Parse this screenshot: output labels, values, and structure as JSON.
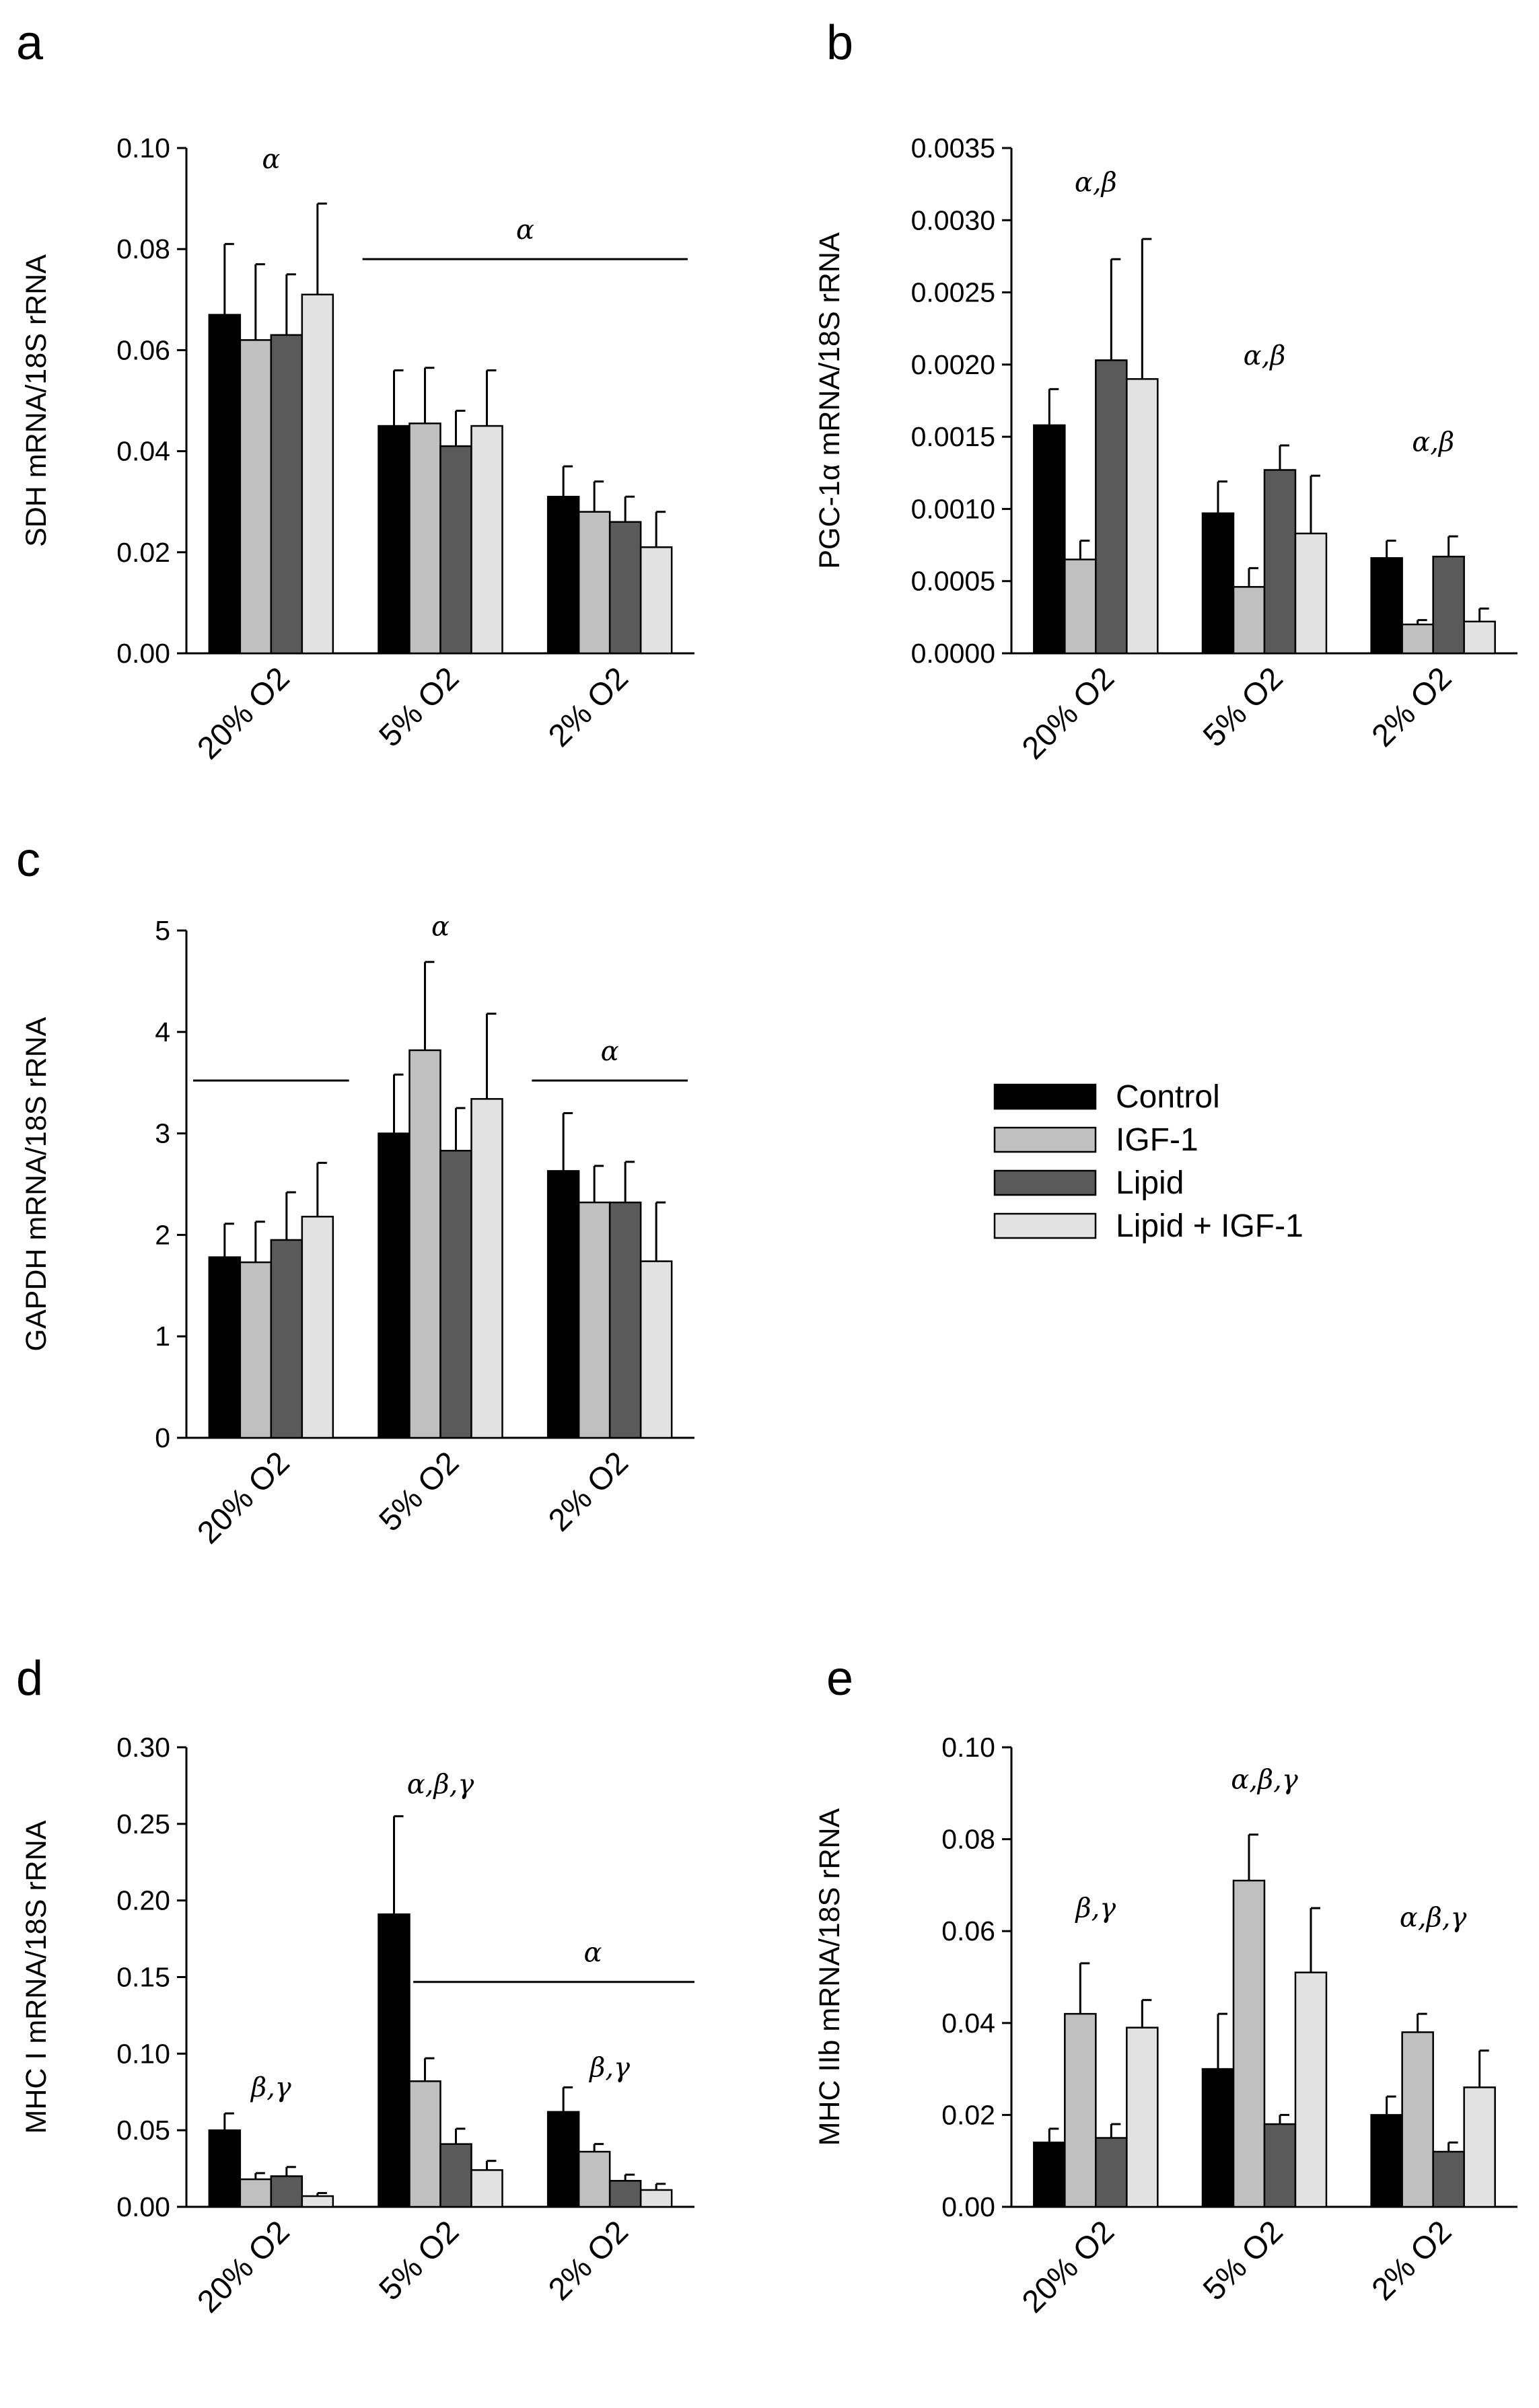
{
  "colors": {
    "Control": "#000000",
    "IGF-1": "#c0c0c0",
    "Lipid": "#5a5a5a",
    "Lipid + IGF-1": "#e2e2e2"
  },
  "legend": {
    "items": [
      "Control",
      "IGF-1",
      "Lipid",
      "Lipid + IGF-1"
    ]
  },
  "chart_data": [
    {
      "panel": "a",
      "type": "bar",
      "ylabel": "SDH mRNA/18S rRNA",
      "categories": [
        "20% O2",
        "5% O2",
        "2% O2"
      ],
      "ylim": [
        0,
        0.1
      ],
      "yticks": [
        "0.00",
        "0.02",
        "0.04",
        "0.06",
        "0.08",
        "0.10"
      ],
      "series": [
        {
          "name": "Control",
          "values": [
            0.067,
            0.045,
            0.031
          ],
          "errors": [
            0.014,
            0.011,
            0.006
          ]
        },
        {
          "name": "IGF-1",
          "values": [
            0.062,
            0.0455,
            0.028
          ],
          "errors": [
            0.015,
            0.011,
            0.006
          ]
        },
        {
          "name": "Lipid",
          "values": [
            0.063,
            0.041,
            0.026
          ],
          "errors": [
            0.012,
            0.007,
            0.005
          ]
        },
        {
          "name": "Lipid + IGF-1",
          "values": [
            0.071,
            0.045,
            0.021
          ],
          "errors": [
            0.018,
            0.011,
            0.007
          ]
        }
      ],
      "annotations": [
        {
          "text": "α",
          "category": 0,
          "y": 0.096
        },
        {
          "text": "α",
          "span": [
            1,
            2
          ],
          "y": 0.082,
          "line": true
        }
      ]
    },
    {
      "panel": "b",
      "type": "bar",
      "ylabel": "PGC-1α mRNA/18S rRNA",
      "categories": [
        "20% O2",
        "5% O2",
        "2% O2"
      ],
      "ylim": [
        0,
        0.0035
      ],
      "yticks": [
        "0.0000",
        "0.0005",
        "0.0010",
        "0.0015",
        "0.0020",
        "0.0025",
        "0.0030",
        "0.0035"
      ],
      "series": [
        {
          "name": "Control",
          "values": [
            0.00158,
            0.00097,
            0.00066
          ],
          "errors": [
            0.00025,
            0.00022,
            0.00012
          ]
        },
        {
          "name": "IGF-1",
          "values": [
            0.00065,
            0.00046,
            0.0002
          ],
          "errors": [
            0.00013,
            0.00013,
            3e-05
          ]
        },
        {
          "name": "Lipid",
          "values": [
            0.00203,
            0.00127,
            0.00067
          ],
          "errors": [
            0.0007,
            0.00017,
            0.00014
          ]
        },
        {
          "name": "Lipid + IGF-1",
          "values": [
            0.0019,
            0.00083,
            0.00022
          ],
          "errors": [
            0.00097,
            0.0004,
            9e-05
          ]
        }
      ],
      "annotations": [
        {
          "text": "α,β",
          "category": 0,
          "y": 0.0032
        },
        {
          "text": "α,β",
          "category": 1,
          "y": 0.002
        },
        {
          "text": "α,β",
          "category": 2,
          "y": 0.0014
        }
      ]
    },
    {
      "panel": "c",
      "type": "bar",
      "ylabel": "GAPDH mRNA/18S rRNA",
      "categories": [
        "20% O2",
        "5% O2",
        "2% O2"
      ],
      "ylim": [
        0,
        5
      ],
      "yticks": [
        "0",
        "1",
        "2",
        "3",
        "4",
        "5"
      ],
      "series": [
        {
          "name": "Control",
          "values": [
            1.78,
            3.0,
            2.63
          ],
          "errors": [
            0.33,
            0.58,
            0.57
          ]
        },
        {
          "name": "IGF-1",
          "values": [
            1.73,
            3.82,
            2.32
          ],
          "errors": [
            0.4,
            0.87,
            0.36
          ]
        },
        {
          "name": "Lipid",
          "values": [
            1.95,
            2.83,
            2.32
          ],
          "errors": [
            0.47,
            0.42,
            0.4
          ]
        },
        {
          "name": "Lipid + IGF-1",
          "values": [
            2.18,
            3.34,
            1.74
          ],
          "errors": [
            0.53,
            0.84,
            0.58
          ]
        }
      ],
      "annotations": [
        {
          "text": "α",
          "category": 1,
          "y": 4.95
        },
        {
          "text": "α",
          "span": [
            2,
            2
          ],
          "y": 3.72,
          "line": true,
          "line_only_span": [
            0,
            0
          ]
        }
      ]
    },
    {
      "panel": "d",
      "type": "bar",
      "ylabel": "MHC I mRNA/18S rRNA",
      "categories": [
        "20% O2",
        "5% O2",
        "2% O2"
      ],
      "ylim": [
        0,
        0.3
      ],
      "yticks": [
        "0.00",
        "0.05",
        "0.10",
        "0.15",
        "0.20",
        "0.25",
        "0.30"
      ],
      "series": [
        {
          "name": "Control",
          "values": [
            0.05,
            0.191,
            0.062
          ],
          "errors": [
            0.011,
            0.064,
            0.016
          ]
        },
        {
          "name": "IGF-1",
          "values": [
            0.018,
            0.082,
            0.036
          ],
          "errors": [
            0.004,
            0.015,
            0.005
          ]
        },
        {
          "name": "Lipid",
          "values": [
            0.02,
            0.041,
            0.017
          ],
          "errors": [
            0.006,
            0.01,
            0.004
          ]
        },
        {
          "name": "Lipid + IGF-1",
          "values": [
            0.007,
            0.024,
            0.011
          ],
          "errors": [
            0.002,
            0.006,
            0.004
          ]
        }
      ],
      "annotations": [
        {
          "text": "β,γ",
          "category": 0,
          "y": 0.072
        },
        {
          "text": "α,β,γ",
          "category": 1,
          "y": 0.27
        },
        {
          "text": "α",
          "span": [
            1.3,
            2.5
          ],
          "y": 0.16,
          "line": true
        },
        {
          "text": "β,γ",
          "category": 2,
          "y": 0.085
        }
      ]
    },
    {
      "panel": "e",
      "type": "bar",
      "ylabel": "MHC IIb mRNA/18S rRNA",
      "categories": [
        "20% O2",
        "5% O2",
        "2% O2"
      ],
      "ylim": [
        0,
        0.1
      ],
      "yticks": [
        "0.00",
        "0.02",
        "0.04",
        "0.06",
        "0.08",
        "0.10"
      ],
      "series": [
        {
          "name": "Control",
          "values": [
            0.014,
            0.03,
            0.02
          ],
          "errors": [
            0.003,
            0.012,
            0.004
          ]
        },
        {
          "name": "IGF-1",
          "values": [
            0.042,
            0.071,
            0.038
          ],
          "errors": [
            0.011,
            0.01,
            0.004
          ]
        },
        {
          "name": "Lipid",
          "values": [
            0.015,
            0.018,
            0.012
          ],
          "errors": [
            0.003,
            0.002,
            0.002
          ]
        },
        {
          "name": "Lipid + IGF-1",
          "values": [
            0.039,
            0.051,
            0.026
          ],
          "errors": [
            0.006,
            0.014,
            0.008
          ]
        }
      ],
      "annotations": [
        {
          "text": "β,γ",
          "category": 0,
          "y": 0.063
        },
        {
          "text": "α,β,γ",
          "category": 1,
          "y": 0.091
        },
        {
          "text": "α,β,γ",
          "category": 2,
          "y": 0.061
        }
      ]
    }
  ]
}
